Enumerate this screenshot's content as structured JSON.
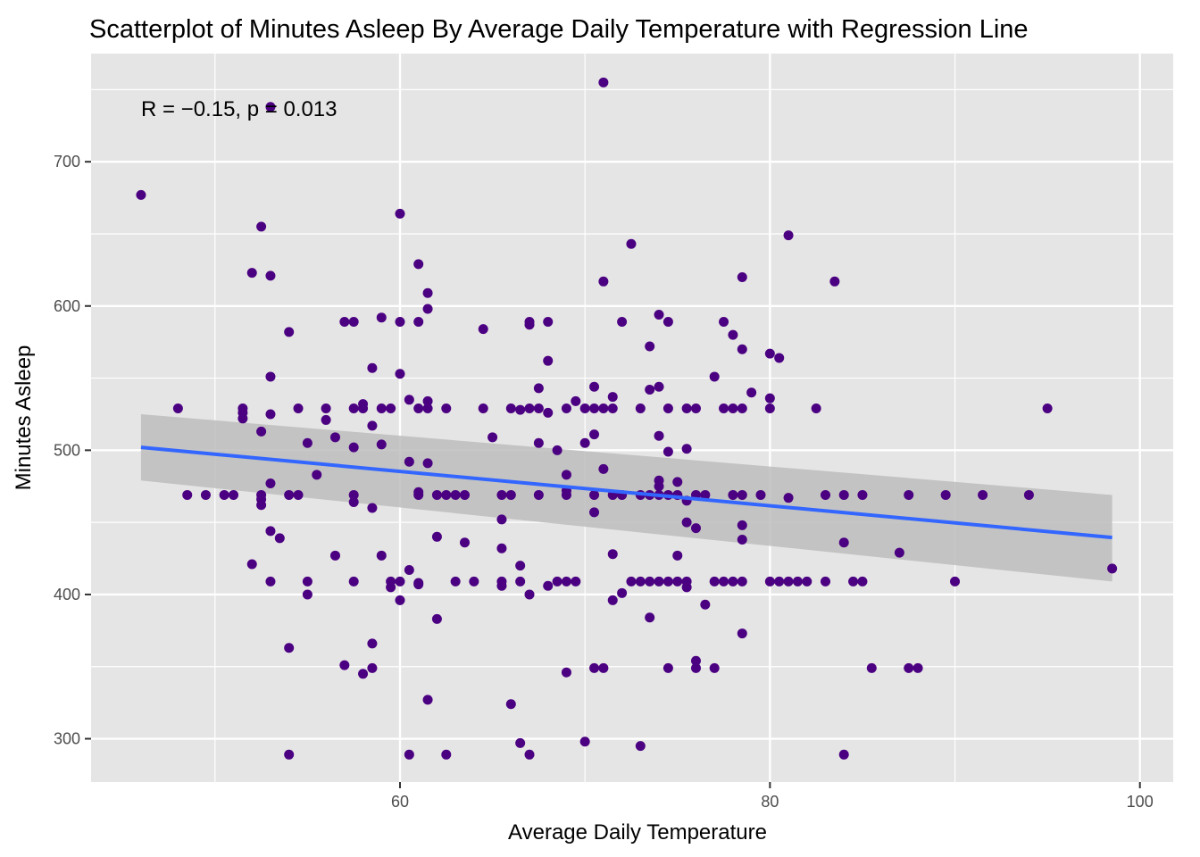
{
  "chart_data": {
    "type": "scatter",
    "title": "Scatterplot of Minutes Asleep By Average Daily Temperature with Regression Line",
    "xlabel": "Average Daily Temperature",
    "ylabel": "Minutes Asleep",
    "xlim": [
      43.3,
      101.8
    ],
    "ylim": [
      270,
      775
    ],
    "x_ticks": [
      60,
      80,
      100
    ],
    "y_ticks": [
      300,
      400,
      500,
      600,
      700
    ],
    "grid": true,
    "annotation": "R = −0.15, p = 0.013",
    "colors": {
      "panel": "#e5e5e5",
      "grid": "#ffffff",
      "point": "#4b0082",
      "line": "#3366ff",
      "band": "#bdbdbd"
    },
    "regression": {
      "x": [
        46,
        98.5
      ],
      "y": [
        502,
        439.5
      ],
      "ci_lower": [
        479,
        409
      ],
      "ci_upper": [
        525,
        469
      ]
    },
    "points": [
      [
        46,
        677
      ],
      [
        48,
        529
      ],
      [
        48.5,
        469
      ],
      [
        49.5,
        469
      ],
      [
        50.5,
        469
      ],
      [
        51,
        469
      ],
      [
        51.5,
        529
      ],
      [
        51.5,
        526
      ],
      [
        51.5,
        522
      ],
      [
        52,
        623
      ],
      [
        52,
        421
      ],
      [
        52.5,
        655
      ],
      [
        52.5,
        513
      ],
      [
        52.5,
        469
      ],
      [
        52.5,
        466
      ],
      [
        52.5,
        462
      ],
      [
        53,
        738
      ],
      [
        53,
        621
      ],
      [
        53,
        551
      ],
      [
        53,
        525
      ],
      [
        53,
        477
      ],
      [
        53,
        444
      ],
      [
        53,
        409
      ],
      [
        53.5,
        439
      ],
      [
        54,
        582
      ],
      [
        54,
        469
      ],
      [
        54,
        363
      ],
      [
        54,
        289
      ],
      [
        54.5,
        529
      ],
      [
        54.5,
        469
      ],
      [
        55,
        505
      ],
      [
        55,
        409
      ],
      [
        55,
        400
      ],
      [
        55.5,
        483
      ],
      [
        56,
        529
      ],
      [
        56,
        521
      ],
      [
        56.5,
        509
      ],
      [
        56.5,
        427
      ],
      [
        57,
        589
      ],
      [
        57,
        351
      ],
      [
        57.5,
        589
      ],
      [
        57.5,
        529
      ],
      [
        57.5,
        502
      ],
      [
        57.5,
        469
      ],
      [
        57.5,
        464
      ],
      [
        57.5,
        409
      ],
      [
        58,
        532
      ],
      [
        58,
        529
      ],
      [
        58,
        345
      ],
      [
        58.5,
        557
      ],
      [
        58.5,
        517
      ],
      [
        58.5,
        460
      ],
      [
        58.5,
        366
      ],
      [
        58.5,
        349
      ],
      [
        59,
        592
      ],
      [
        59,
        529
      ],
      [
        59,
        504
      ],
      [
        59,
        427
      ],
      [
        59.5,
        529
      ],
      [
        59.5,
        409
      ],
      [
        59.5,
        405
      ],
      [
        60,
        664
      ],
      [
        60,
        589
      ],
      [
        60,
        553
      ],
      [
        60,
        409
      ],
      [
        60,
        396
      ],
      [
        60.5,
        535
      ],
      [
        60.5,
        492
      ],
      [
        60.5,
        417
      ],
      [
        60.5,
        289
      ],
      [
        61,
        629
      ],
      [
        61,
        589
      ],
      [
        61,
        529
      ],
      [
        61,
        471
      ],
      [
        61,
        469
      ],
      [
        61,
        408
      ],
      [
        61,
        407
      ],
      [
        61.5,
        609
      ],
      [
        61.5,
        598
      ],
      [
        61.5,
        534
      ],
      [
        61.5,
        529
      ],
      [
        61.5,
        491
      ],
      [
        61.5,
        327
      ],
      [
        62,
        469
      ],
      [
        62,
        440
      ],
      [
        62,
        383
      ],
      [
        62.5,
        529
      ],
      [
        62.5,
        469
      ],
      [
        62.5,
        289
      ],
      [
        63,
        469
      ],
      [
        63,
        409
      ],
      [
        63.5,
        469
      ],
      [
        63.5,
        436
      ],
      [
        64,
        409
      ],
      [
        64.5,
        584
      ],
      [
        64.5,
        529
      ],
      [
        65,
        509
      ],
      [
        65.5,
        469
      ],
      [
        65.5,
        452
      ],
      [
        65.5,
        432
      ],
      [
        65.5,
        409
      ],
      [
        65.5,
        406
      ],
      [
        66,
        529
      ],
      [
        66,
        469
      ],
      [
        66,
        324
      ],
      [
        66.5,
        528
      ],
      [
        66.5,
        420
      ],
      [
        66.5,
        409
      ],
      [
        66.5,
        297
      ],
      [
        67,
        589
      ],
      [
        67,
        587
      ],
      [
        67,
        529
      ],
      [
        67,
        400
      ],
      [
        67,
        289
      ],
      [
        67.5,
        543
      ],
      [
        67.5,
        529
      ],
      [
        67.5,
        505
      ],
      [
        67.5,
        469
      ],
      [
        68,
        589
      ],
      [
        68,
        562
      ],
      [
        68,
        526
      ],
      [
        68,
        406
      ],
      [
        68.5,
        500
      ],
      [
        68.5,
        409
      ],
      [
        69,
        529
      ],
      [
        69,
        483
      ],
      [
        69,
        472
      ],
      [
        69,
        469
      ],
      [
        69,
        409
      ],
      [
        69,
        346
      ],
      [
        69.5,
        534
      ],
      [
        69.5,
        409
      ],
      [
        70,
        529
      ],
      [
        70,
        505
      ],
      [
        70,
        298
      ],
      [
        70.5,
        544
      ],
      [
        70.5,
        529
      ],
      [
        70.5,
        511
      ],
      [
        70.5,
        469
      ],
      [
        70.5,
        457
      ],
      [
        70.5,
        349
      ],
      [
        71,
        755
      ],
      [
        71,
        617
      ],
      [
        71,
        529
      ],
      [
        71,
        487
      ],
      [
        71,
        349
      ],
      [
        71.5,
        537
      ],
      [
        71.5,
        529
      ],
      [
        71.5,
        469
      ],
      [
        71.5,
        428
      ],
      [
        71.5,
        396
      ],
      [
        72,
        589
      ],
      [
        72,
        469
      ],
      [
        72,
        401
      ],
      [
        72.5,
        643
      ],
      [
        72.5,
        409
      ],
      [
        73,
        529
      ],
      [
        73,
        469
      ],
      [
        73,
        409
      ],
      [
        73,
        295
      ],
      [
        73.5,
        572
      ],
      [
        73.5,
        542
      ],
      [
        73.5,
        469
      ],
      [
        73.5,
        409
      ],
      [
        73.5,
        384
      ],
      [
        74,
        594
      ],
      [
        74,
        544
      ],
      [
        74,
        510
      ],
      [
        74,
        479
      ],
      [
        74,
        475
      ],
      [
        74,
        469
      ],
      [
        74,
        409
      ],
      [
        74.5,
        589
      ],
      [
        74.5,
        529
      ],
      [
        74.5,
        499
      ],
      [
        74.5,
        469
      ],
      [
        74.5,
        409
      ],
      [
        74.5,
        349
      ],
      [
        75,
        478
      ],
      [
        75,
        469
      ],
      [
        75,
        427
      ],
      [
        75,
        409
      ],
      [
        75.5,
        529
      ],
      [
        75.5,
        501
      ],
      [
        75.5,
        465
      ],
      [
        75.5,
        450
      ],
      [
        75.5,
        409
      ],
      [
        75.5,
        405
      ],
      [
        76,
        529
      ],
      [
        76,
        469
      ],
      [
        76,
        446
      ],
      [
        76,
        354
      ],
      [
        76,
        349
      ],
      [
        76.5,
        469
      ],
      [
        76.5,
        393
      ],
      [
        77,
        551
      ],
      [
        77,
        409
      ],
      [
        77,
        349
      ],
      [
        77.5,
        589
      ],
      [
        77.5,
        529
      ],
      [
        77.5,
        409
      ],
      [
        78,
        580
      ],
      [
        78,
        529
      ],
      [
        78,
        469
      ],
      [
        78,
        409
      ],
      [
        78.5,
        620
      ],
      [
        78.5,
        570
      ],
      [
        78.5,
        529
      ],
      [
        78.5,
        469
      ],
      [
        78.5,
        448
      ],
      [
        78.5,
        438
      ],
      [
        78.5,
        409
      ],
      [
        78.5,
        373
      ],
      [
        79,
        540
      ],
      [
        79.5,
        469
      ],
      [
        80,
        567
      ],
      [
        80,
        536
      ],
      [
        80,
        529
      ],
      [
        80,
        409
      ],
      [
        80.5,
        564
      ],
      [
        80.5,
        409
      ],
      [
        81,
        649
      ],
      [
        81,
        467
      ],
      [
        81,
        409
      ],
      [
        81.5,
        409
      ],
      [
        82,
        409
      ],
      [
        82.5,
        529
      ],
      [
        83,
        469
      ],
      [
        83,
        409
      ],
      [
        83.5,
        617
      ],
      [
        84,
        469
      ],
      [
        84,
        436
      ],
      [
        84,
        289
      ],
      [
        84.5,
        409
      ],
      [
        85,
        469
      ],
      [
        85,
        409
      ],
      [
        85.5,
        349
      ],
      [
        87,
        429
      ],
      [
        87.5,
        469
      ],
      [
        87.5,
        349
      ],
      [
        88,
        349
      ],
      [
        89.5,
        469
      ],
      [
        90,
        409
      ],
      [
        91.5,
        469
      ],
      [
        94,
        469
      ],
      [
        95,
        529
      ],
      [
        98.5,
        418
      ]
    ]
  }
}
